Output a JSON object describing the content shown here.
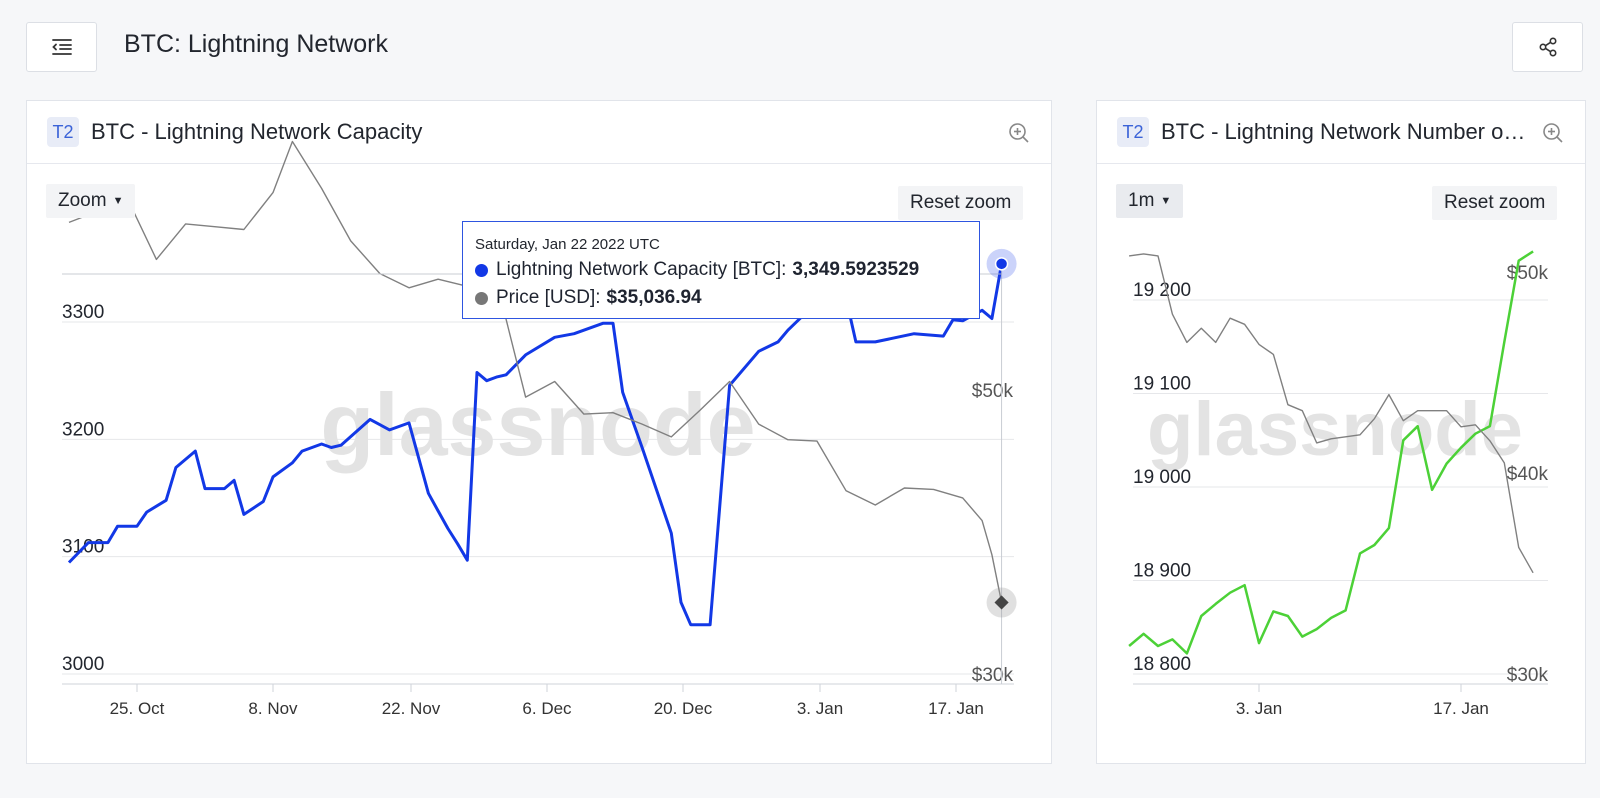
{
  "page": {
    "title": "BTC: Lightning Network"
  },
  "icons": {
    "menu": "menu-collapse-icon",
    "share": "share-icon",
    "zoom": "zoom-in-icon"
  },
  "colors": {
    "capacity": "#1238e6",
    "price": "#7a7a7a",
    "nodes": "#4cd137",
    "badge_bg": "#e8ecf7",
    "badge_fg": "#3b63d8"
  },
  "left_card": {
    "badge": "T2",
    "title": "BTC - Lightning Network Capacity",
    "zoom_label": "Zoom",
    "reset_label": "Reset zoom",
    "watermark": "glassnode",
    "tooltip": {
      "date": "Saturday, Jan 22 2022 UTC",
      "row1_label": "Lightning Network Capacity [BTC]:",
      "row1_value": "3,349.5923529",
      "row2_label": "Price [USD]:",
      "row2_value": "$35,036.94"
    }
  },
  "right_card": {
    "badge": "T2",
    "title": "BTC - Lightning Network Number of Nodes",
    "range_label": "1m",
    "reset_label": "Reset zoom",
    "watermark": "glassnode"
  },
  "chart_data": [
    {
      "type": "line",
      "title": "BTC - Lightning Network Capacity",
      "x_ticks": [
        "25. Oct",
        "8. Nov",
        "22. Nov",
        "6. Dec",
        "20. Dec",
        "3. Jan",
        "17. Jan"
      ],
      "y_left": {
        "ticks": [
          "3000",
          "3100",
          "3200",
          "3300"
        ],
        "range": [
          3000,
          3350
        ]
      },
      "y_right": {
        "ticks": [
          "$30k",
          "$50k"
        ]
      },
      "grid": true,
      "series": [
        {
          "name": "Lightning Network Capacity [BTC]",
          "axis": "left",
          "x": [
            "2021-10-18",
            "2021-10-20",
            "2021-10-22",
            "2021-10-23",
            "2021-10-25",
            "2021-10-26",
            "2021-10-28",
            "2021-10-29",
            "2021-10-31",
            "2021-11-01",
            "2021-11-03",
            "2021-11-04",
            "2021-11-05",
            "2021-11-07",
            "2021-11-08",
            "2021-11-10",
            "2021-11-11",
            "2021-11-13",
            "2021-11-14",
            "2021-11-15",
            "2021-11-18",
            "2021-11-20",
            "2021-11-22",
            "2021-11-24",
            "2021-11-25",
            "2021-11-26",
            "2021-11-27",
            "2021-11-28",
            "2021-11-29",
            "2021-11-30",
            "2021-12-01",
            "2021-12-02",
            "2021-12-04",
            "2021-12-07",
            "2021-12-09",
            "2021-12-12",
            "2021-12-13",
            "2021-12-14",
            "2021-12-16",
            "2021-12-19",
            "2021-12-20",
            "2021-12-21",
            "2021-12-23",
            "2021-12-25",
            "2021-12-28",
            "2021-12-30",
            "2021-12-31",
            "2022-01-02",
            "2022-01-04",
            "2022-01-06",
            "2022-01-07",
            "2022-01-09",
            "2022-01-13",
            "2022-01-16",
            "2022-01-17",
            "2022-01-18",
            "2022-01-20",
            "2022-01-21",
            "2022-01-22"
          ],
          "y": [
            3095,
            3112,
            3112,
            3126,
            3126,
            3138,
            3148,
            3176,
            3190,
            3158,
            3158,
            3165,
            3136,
            3147,
            3168,
            3180,
            3190,
            3196,
            3193,
            3195,
            3217,
            3208,
            3214,
            3154,
            3139,
            3124,
            3111,
            3097,
            3257,
            3250,
            3253,
            3255,
            3272,
            3287,
            3290,
            3299,
            3299,
            3240,
            3193,
            3120,
            3061,
            3042,
            3042,
            3246,
            3275,
            3283,
            3293,
            3309,
            3316,
            3320,
            3283,
            3283,
            3290,
            3288,
            3302,
            3301,
            3310,
            3303,
            3349.59
          ]
        },
        {
          "name": "Price [USD]",
          "axis": "right",
          "x": [
            "2021-10-18",
            "2021-10-21",
            "2021-10-24",
            "2021-10-27",
            "2021-10-30",
            "2021-11-02",
            "2021-11-05",
            "2021-11-08",
            "2021-11-10",
            "2021-11-13",
            "2021-11-16",
            "2021-11-19",
            "2021-11-22",
            "2021-11-25",
            "2021-11-28",
            "2021-12-01",
            "2021-12-04",
            "2021-12-07",
            "2021-12-10",
            "2021-12-13",
            "2021-12-16",
            "2021-12-19",
            "2021-12-22",
            "2021-12-25",
            "2021-12-28",
            "2021-12-31",
            "2022-01-03",
            "2022-01-06",
            "2022-01-09",
            "2022-01-12",
            "2022-01-15",
            "2022-01-18",
            "2022-01-20",
            "2022-01-21",
            "2022-01-22"
          ],
          "y": [
            61800,
            62600,
            63500,
            59200,
            61700,
            61500,
            61300,
            63900,
            67500,
            64200,
            60500,
            58200,
            57200,
            57800,
            57300,
            57700,
            49500,
            50600,
            48300,
            48400,
            47600,
            46700,
            48600,
            50600,
            47600,
            46500,
            46400,
            42900,
            41900,
            43100,
            43000,
            42400,
            40800,
            38400,
            35036.94
          ]
        }
      ]
    },
    {
      "type": "line",
      "title": "BTC - Lightning Network Number of Nodes",
      "x_ticks": [
        "3. Jan",
        "17. Jan"
      ],
      "y_left": {
        "ticks": [
          "18 800",
          "18 900",
          "19 000",
          "19 100",
          "19 200"
        ],
        "range": [
          18800,
          19220
        ]
      },
      "y_right": {
        "ticks": [
          "$30k",
          "$40k",
          "$50k"
        ]
      },
      "grid": true,
      "series": [
        {
          "name": "Number of Nodes",
          "axis": "left",
          "x": [
            "2021-12-25",
            "2021-12-26",
            "2021-12-27",
            "2021-12-28",
            "2021-12-29",
            "2021-12-30",
            "2021-12-31",
            "2022-01-01",
            "2022-01-02",
            "2022-01-03",
            "2022-01-04",
            "2022-01-05",
            "2022-01-06",
            "2022-01-07",
            "2022-01-08",
            "2022-01-09",
            "2022-01-10",
            "2022-01-11",
            "2022-01-12",
            "2022-01-13",
            "2022-01-14",
            "2022-01-15",
            "2022-01-16",
            "2022-01-17",
            "2022-01-18",
            "2022-01-19",
            "2022-01-20",
            "2022-01-21",
            "2022-01-22"
          ],
          "y": [
            18830,
            18843,
            18830,
            18837,
            18822,
            18862,
            18875,
            18887,
            18895,
            18833,
            18867,
            18862,
            18840,
            18848,
            18860,
            18868,
            18929,
            18938,
            18956,
            19050,
            19065,
            18997,
            19025,
            19042,
            19057,
            19065,
            19155,
            19242,
            19252
          ]
        },
        {
          "name": "Price [USD]",
          "axis": "right",
          "x": [
            "2021-12-25",
            "2021-12-26",
            "2021-12-27",
            "2021-12-28",
            "2021-12-29",
            "2021-12-30",
            "2021-12-31",
            "2022-01-01",
            "2022-01-02",
            "2022-01-03",
            "2022-01-04",
            "2022-01-05",
            "2022-01-06",
            "2022-01-07",
            "2022-01-08",
            "2022-01-09",
            "2022-01-10",
            "2022-01-11",
            "2022-01-12",
            "2022-01-13",
            "2022-01-14",
            "2022-01-15",
            "2022-01-16",
            "2022-01-17",
            "2022-01-18",
            "2022-01-19",
            "2022-01-20",
            "2022-01-21",
            "2022-01-22"
          ],
          "y": [
            50800,
            50900,
            50800,
            47900,
            46500,
            47200,
            46500,
            47700,
            47400,
            46400,
            45900,
            43400,
            43100,
            41500,
            41700,
            41800,
            41900,
            42700,
            43900,
            42600,
            43100,
            43100,
            43100,
            42300,
            42400,
            41600,
            40500,
            36300,
            35036.94
          ]
        }
      ]
    }
  ]
}
